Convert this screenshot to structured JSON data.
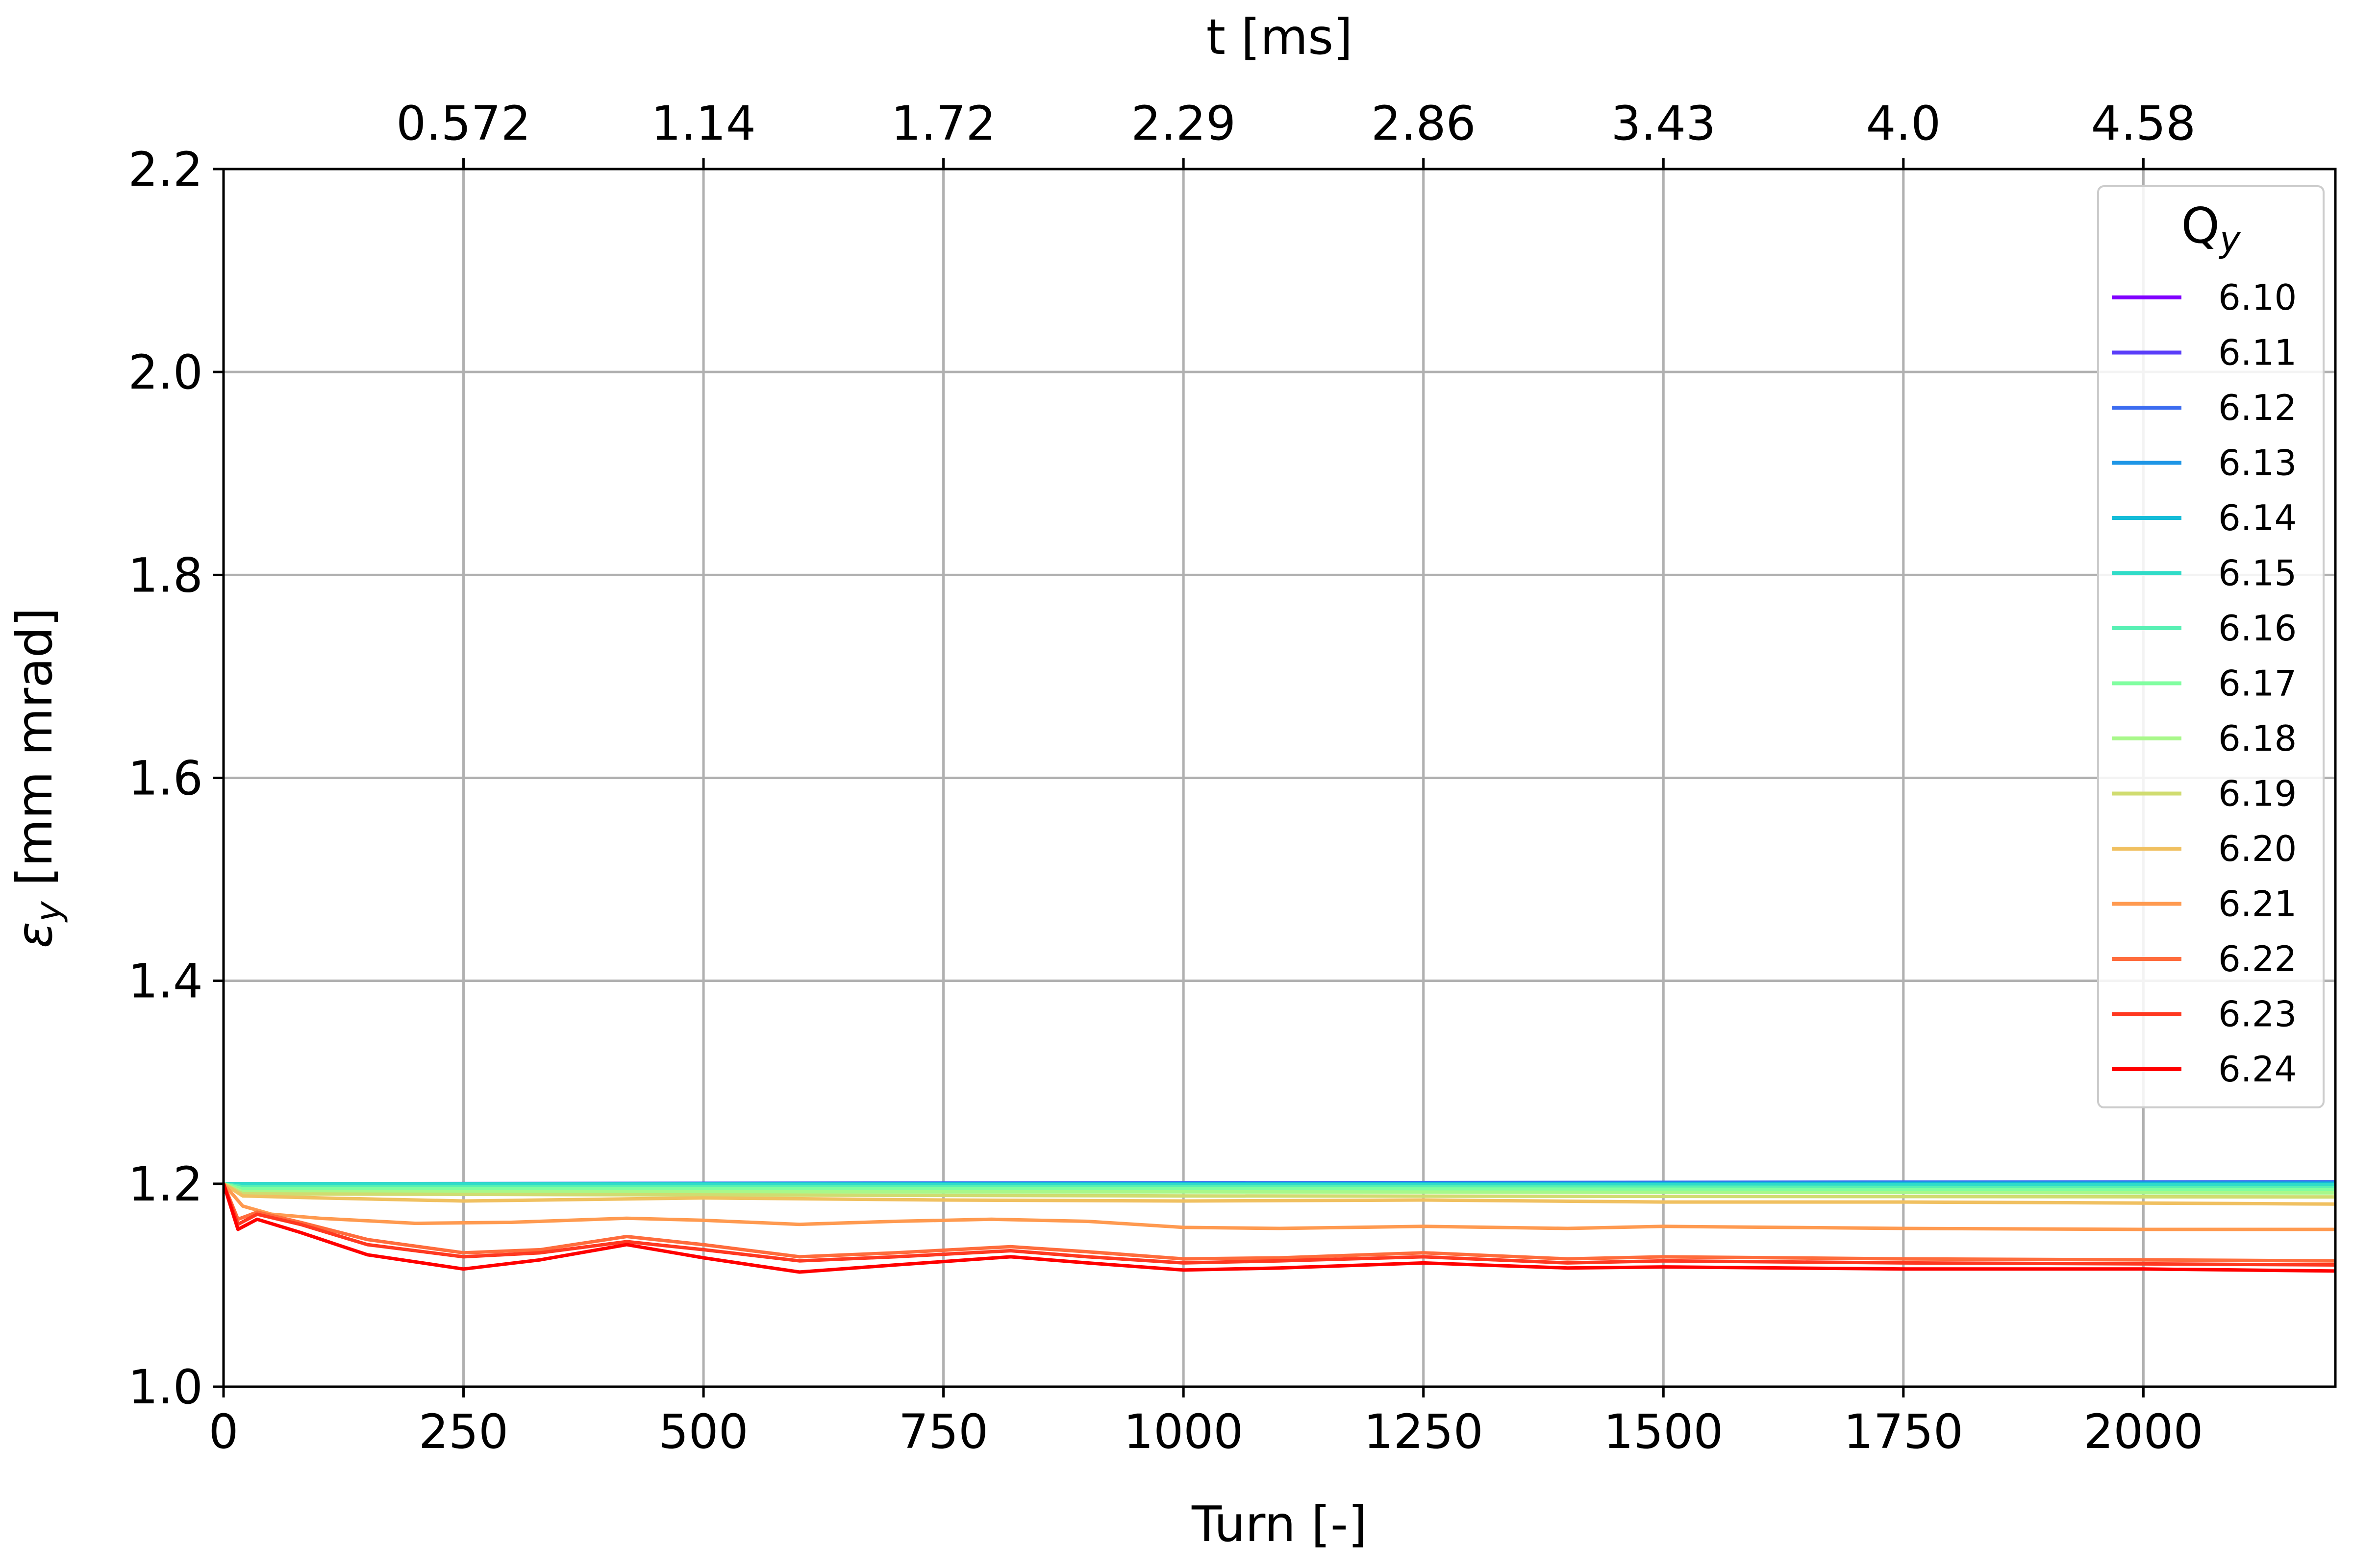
{
  "chart_data": {
    "type": "line",
    "xlabel": "Turn [-]",
    "ylabel_main": "ε",
    "ylabel_sub": "y",
    "ylabel_rest": " [mm mrad]",
    "top_xlabel": "t [ms]",
    "xlim": [
      0,
      2200
    ],
    "ylim": [
      1.0,
      2.2
    ],
    "grid": true,
    "x_ticks": [
      0,
      250,
      500,
      750,
      1000,
      1250,
      1500,
      1750,
      2000
    ],
    "x_tick_labels": [
      "0",
      "250",
      "500",
      "750",
      "1000",
      "1250",
      "1500",
      "1750",
      "2000"
    ],
    "y_ticks": [
      1.0,
      1.2,
      1.4,
      1.6,
      1.8,
      2.0,
      2.2
    ],
    "y_tick_labels": [
      "1.0",
      "1.2",
      "1.4",
      "1.6",
      "1.8",
      "2.0",
      "2.2"
    ],
    "top_ticks": [
      250,
      500,
      750,
      1000,
      1250,
      1500,
      1750,
      2000
    ],
    "top_tick_labels": [
      "0.572",
      "1.14",
      "1.72",
      "2.29",
      "2.86",
      "3.43",
      "4.0",
      "4.58"
    ],
    "legend": {
      "title_main": "Q",
      "title_sub": "y",
      "placement": "top-right"
    },
    "series": [
      {
        "name": "6.10",
        "color": "#8000ff",
        "points": [
          [
            0,
            1.2
          ],
          [
            2200,
            1.2
          ]
        ]
      },
      {
        "name": "6.11",
        "color": "#5a3df9",
        "points": [
          [
            0,
            1.2
          ],
          [
            2200,
            1.2
          ]
        ]
      },
      {
        "name": "6.12",
        "color": "#3c6cf0",
        "points": [
          [
            0,
            1.2
          ],
          [
            1000,
            1.201
          ],
          [
            2200,
            1.202
          ]
        ]
      },
      {
        "name": "6.13",
        "color": "#1e96e6",
        "points": [
          [
            0,
            1.2
          ],
          [
            1000,
            1.2
          ],
          [
            2200,
            1.201
          ]
        ]
      },
      {
        "name": "6.14",
        "color": "#14bcd8",
        "points": [
          [
            0,
            1.2
          ],
          [
            2200,
            1.2
          ]
        ]
      },
      {
        "name": "6.15",
        "color": "#30dcc8",
        "points": [
          [
            0,
            1.2
          ],
          [
            1000,
            1.199
          ],
          [
            2200,
            1.199
          ]
        ]
      },
      {
        "name": "6.16",
        "color": "#58f0b4",
        "points": [
          [
            0,
            1.2
          ],
          [
            20,
            1.197
          ],
          [
            1000,
            1.197
          ],
          [
            2200,
            1.196
          ]
        ]
      },
      {
        "name": "6.17",
        "color": "#80fea0",
        "points": [
          [
            0,
            1.2
          ],
          [
            20,
            1.195
          ],
          [
            1000,
            1.195
          ],
          [
            2200,
            1.194
          ]
        ]
      },
      {
        "name": "6.18",
        "color": "#a8f88a",
        "points": [
          [
            0,
            1.2
          ],
          [
            20,
            1.192
          ],
          [
            500,
            1.192
          ],
          [
            1000,
            1.192
          ],
          [
            2200,
            1.191
          ]
        ]
      },
      {
        "name": "6.19",
        "color": "#d0dc70",
        "points": [
          [
            0,
            1.2
          ],
          [
            20,
            1.19
          ],
          [
            500,
            1.189
          ],
          [
            1000,
            1.188
          ],
          [
            2200,
            1.187
          ]
        ]
      },
      {
        "name": "6.20",
        "color": "#f0c060",
        "points": [
          [
            0,
            1.2
          ],
          [
            20,
            1.188
          ],
          [
            100,
            1.186
          ],
          [
            250,
            1.183
          ],
          [
            500,
            1.186
          ],
          [
            750,
            1.184
          ],
          [
            1000,
            1.183
          ],
          [
            1250,
            1.184
          ],
          [
            1500,
            1.182
          ],
          [
            1750,
            1.182
          ],
          [
            2000,
            1.181
          ],
          [
            2200,
            1.18
          ]
        ]
      },
      {
        "name": "6.21",
        "color": "#ff9a50",
        "points": [
          [
            0,
            1.2
          ],
          [
            20,
            1.178
          ],
          [
            50,
            1.17
          ],
          [
            100,
            1.166
          ],
          [
            200,
            1.161
          ],
          [
            300,
            1.162
          ],
          [
            420,
            1.166
          ],
          [
            500,
            1.164
          ],
          [
            600,
            1.16
          ],
          [
            700,
            1.163
          ],
          [
            800,
            1.165
          ],
          [
            900,
            1.163
          ],
          [
            1000,
            1.157
          ],
          [
            1100,
            1.156
          ],
          [
            1250,
            1.158
          ],
          [
            1400,
            1.156
          ],
          [
            1500,
            1.158
          ],
          [
            1750,
            1.156
          ],
          [
            2000,
            1.155
          ],
          [
            2200,
            1.155
          ]
        ]
      },
      {
        "name": "6.22",
        "color": "#ff6c3c",
        "points": [
          [
            0,
            1.2
          ],
          [
            15,
            1.165
          ],
          [
            35,
            1.172
          ],
          [
            80,
            1.162
          ],
          [
            150,
            1.145
          ],
          [
            250,
            1.132
          ],
          [
            330,
            1.135
          ],
          [
            420,
            1.148
          ],
          [
            500,
            1.14
          ],
          [
            600,
            1.128
          ],
          [
            700,
            1.132
          ],
          [
            820,
            1.138
          ],
          [
            900,
            1.133
          ],
          [
            1000,
            1.126
          ],
          [
            1100,
            1.127
          ],
          [
            1250,
            1.132
          ],
          [
            1400,
            1.126
          ],
          [
            1500,
            1.128
          ],
          [
            1750,
            1.126
          ],
          [
            2000,
            1.125
          ],
          [
            2200,
            1.124
          ]
        ]
      },
      {
        "name": "6.23",
        "color": "#ff3820",
        "points": [
          [
            0,
            1.2
          ],
          [
            15,
            1.16
          ],
          [
            35,
            1.17
          ],
          [
            80,
            1.16
          ],
          [
            150,
            1.14
          ],
          [
            250,
            1.128
          ],
          [
            330,
            1.132
          ],
          [
            420,
            1.143
          ],
          [
            500,
            1.135
          ],
          [
            600,
            1.124
          ],
          [
            700,
            1.128
          ],
          [
            820,
            1.134
          ],
          [
            900,
            1.128
          ],
          [
            1000,
            1.122
          ],
          [
            1100,
            1.124
          ],
          [
            1250,
            1.128
          ],
          [
            1400,
            1.122
          ],
          [
            1500,
            1.124
          ],
          [
            1750,
            1.122
          ],
          [
            2000,
            1.121
          ],
          [
            2200,
            1.12
          ]
        ]
      },
      {
        "name": "6.24",
        "color": "#ff0000",
        "points": [
          [
            0,
            1.2
          ],
          [
            15,
            1.155
          ],
          [
            35,
            1.165
          ],
          [
            80,
            1.152
          ],
          [
            150,
            1.13
          ],
          [
            250,
            1.116
          ],
          [
            330,
            1.125
          ],
          [
            420,
            1.14
          ],
          [
            500,
            1.127
          ],
          [
            600,
            1.113
          ],
          [
            700,
            1.12
          ],
          [
            820,
            1.128
          ],
          [
            900,
            1.122
          ],
          [
            1000,
            1.115
          ],
          [
            1100,
            1.117
          ],
          [
            1250,
            1.122
          ],
          [
            1400,
            1.117
          ],
          [
            1500,
            1.118
          ],
          [
            1750,
            1.116
          ],
          [
            2000,
            1.116
          ],
          [
            2200,
            1.114
          ]
        ]
      }
    ]
  }
}
